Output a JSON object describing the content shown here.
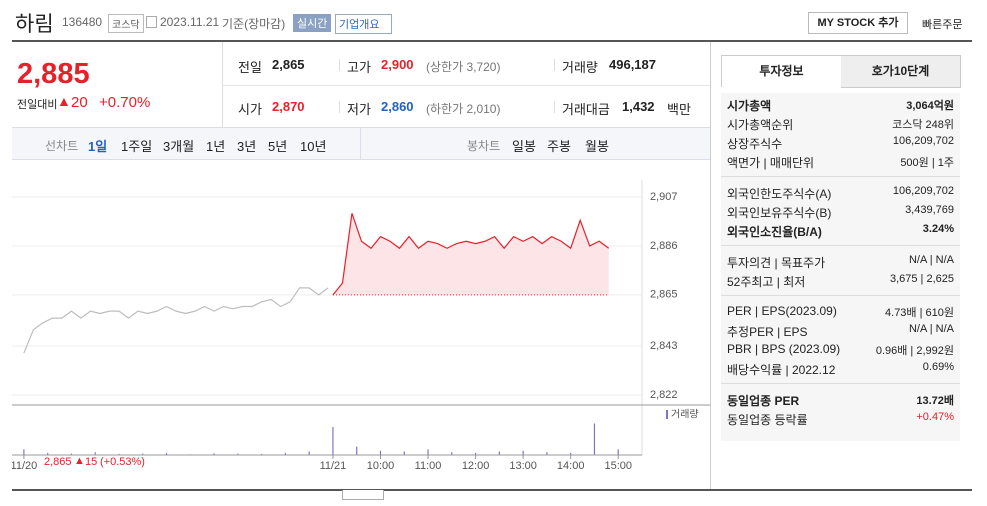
{
  "header": {
    "name": "하림",
    "code": "136480",
    "market": "코스닥",
    "date": "2023.11.21",
    "basis": "기준(장마감)",
    "realtime": "실시간",
    "company": "기업개요",
    "my_stock": "MY STOCK 추가",
    "quick_order": "빠른주문"
  },
  "price": {
    "current": "2,885",
    "change_label": "전일대비",
    "change": "20",
    "change_rate": "+0.70%"
  },
  "quotes": [
    [
      {
        "label": "전일",
        "value": "2,865"
      },
      {
        "label": "고가",
        "value": "2,900",
        "note": "(상한가 3,720)",
        "color": "#e8202a"
      },
      {
        "label": "거래량",
        "value": "496,187"
      }
    ],
    [
      {
        "label": "시가",
        "value": "2,870",
        "color": "#e8202a"
      },
      {
        "label": "저가",
        "value": "2,860",
        "note": "(하한가 2,010)",
        "color": "#1f62c8"
      },
      {
        "label": "거래대금",
        "value": "1,432",
        "unit": "백만"
      }
    ]
  ],
  "chart_tabs": {
    "line_label": "선차트",
    "line": [
      "1일",
      "1주일",
      "3개월",
      "1년",
      "3년",
      "5년",
      "10년"
    ],
    "candle_label": "봉차트",
    "candle": [
      "일봉",
      "주봉",
      "월봉"
    ]
  },
  "chart_data": [
    {
      "type": "line",
      "xlim": [
        -0.25,
        13
      ],
      "ylim": [
        2822,
        2907
      ],
      "grid": true,
      "baseline": 2865,
      "yticks": [
        {
          "value": 2907,
          "label": "2,907"
        },
        {
          "value": 2886,
          "label": "2,886"
        },
        {
          "value": 2865,
          "label": "2,865"
        },
        {
          "value": 2843,
          "label": "2,843"
        },
        {
          "value": 2822,
          "label": "2,822"
        }
      ],
      "series": [
        {
          "color": "#bdbdbd",
          "x": [
            0,
            0.2,
            0.4,
            0.6,
            0.8,
            1,
            1.2,
            1.4,
            1.6,
            1.8,
            2,
            2.2,
            2.4,
            2.6,
            2.8,
            3,
            3.2,
            3.4,
            3.6,
            3.8,
            4,
            4.2,
            4.4,
            4.6,
            4.8,
            5,
            5.2,
            5.4,
            5.6,
            5.8,
            6,
            6.2,
            6.4
          ],
          "values": [
            2840,
            2850,
            2853,
            2855,
            2855,
            2858,
            2855,
            2858,
            2857,
            2858,
            2858,
            2855,
            2858,
            2857,
            2858,
            2860,
            2858,
            2857,
            2858,
            2860,
            2858,
            2860,
            2859,
            2860,
            2860,
            2862,
            2863,
            2860,
            2862,
            2868,
            2868,
            2865,
            2868
          ]
        },
        {
          "color": "#e8202a",
          "fill": "#fde4e6",
          "x": [
            6.5,
            6.7,
            6.9,
            7.1,
            7.3,
            7.5,
            7.7,
            7.9,
            8.1,
            8.3,
            8.5,
            8.7,
            8.9,
            9.1,
            9.3,
            9.5,
            9.7,
            9.9,
            10.1,
            10.3,
            10.5,
            10.7,
            10.9,
            11.1,
            11.3,
            11.5,
            11.7,
            11.9,
            12.1,
            12.3
          ],
          "values": [
            2865,
            2870,
            2900,
            2888,
            2885,
            2890,
            2888,
            2885,
            2890,
            2885,
            2888,
            2887,
            2885,
            2887,
            2888,
            2887,
            2888,
            2890,
            2885,
            2890,
            2888,
            2890,
            2887,
            2890,
            2888,
            2885,
            2897,
            2886,
            2888,
            2885
          ]
        }
      ]
    },
    {
      "type": "bar",
      "xlim": [
        -0.25,
        13
      ],
      "ylim": [
        0,
        50000
      ],
      "xticks": [
        {
          "value": 0,
          "label": "11/20"
        },
        {
          "value": 6.5,
          "label": "11/21"
        },
        {
          "value": 7.5,
          "label": "10:00"
        },
        {
          "value": 8.5,
          "label": "11:00"
        },
        {
          "value": 9.5,
          "label": "12:00"
        },
        {
          "value": 10.5,
          "label": "13:00"
        },
        {
          "value": 11.5,
          "label": "14:00"
        },
        {
          "value": 12.5,
          "label": "15:00"
        }
      ],
      "series": [
        {
          "name": "거래량",
          "color": "#8373c2",
          "x": [
            0,
            0.5,
            1,
            1.5,
            2,
            2.5,
            3,
            3.5,
            4,
            4.5,
            5,
            5.5,
            6,
            6.5,
            7,
            7.5,
            8,
            8.5,
            9,
            9.5,
            10,
            10.5,
            11,
            11.5,
            12,
            12.5
          ],
          "values": [
            8000,
            3000,
            2000,
            4000,
            1500,
            2000,
            3000,
            1000,
            2500,
            2000,
            1500,
            3000,
            5000,
            40000,
            12000,
            6000,
            5000,
            8000,
            4000,
            3000,
            5000,
            6000,
            4000,
            3000,
            45000,
            8000
          ]
        }
      ]
    }
  ],
  "chart_summary": {
    "price": "2,865",
    "change": "15",
    "rate": "(+0.53%)"
  },
  "invest_tabs": [
    "투자정보",
    "호가10단계"
  ],
  "invest_info": [
    [
      {
        "label": "시가총액",
        "value": "3,064억원",
        "strong": true
      },
      {
        "label": "시가총액순위",
        "value": "코스닥 248위"
      },
      {
        "label": "상장주식수",
        "value": "106,209,702"
      },
      {
        "label": "액면가 | 매매단위",
        "value": "500원 | 1주"
      }
    ],
    [
      {
        "label": "외국인한도주식수(A)",
        "value": "106,209,702"
      },
      {
        "label": "외국인보유주식수(B)",
        "value": "3,439,769"
      },
      {
        "label": "외국인소진율(B/A)",
        "value": "3.24%",
        "strong": true
      }
    ],
    [
      {
        "label": "투자의견 | 목표주가",
        "value": "N/A | N/A"
      },
      {
        "label": "52주최고 | 최저",
        "value": "3,675 | 2,625"
      }
    ],
    [
      {
        "label": "PER | EPS(2023.09)",
        "value": "4.73배 | 610원"
      },
      {
        "label": "추정PER | EPS",
        "value": "N/A | N/A"
      },
      {
        "label": "PBR | BPS (2023.09)",
        "value": "0.96배 | 2,992원"
      },
      {
        "label": "배당수익률 | 2022.12",
        "value": "0.69%"
      }
    ],
    [
      {
        "label": "동일업종 PER",
        "value": "13.72배",
        "strong": true
      },
      {
        "label": "동일업종 등락률",
        "value": "+0.47%",
        "color": "#e8202a"
      }
    ]
  ]
}
